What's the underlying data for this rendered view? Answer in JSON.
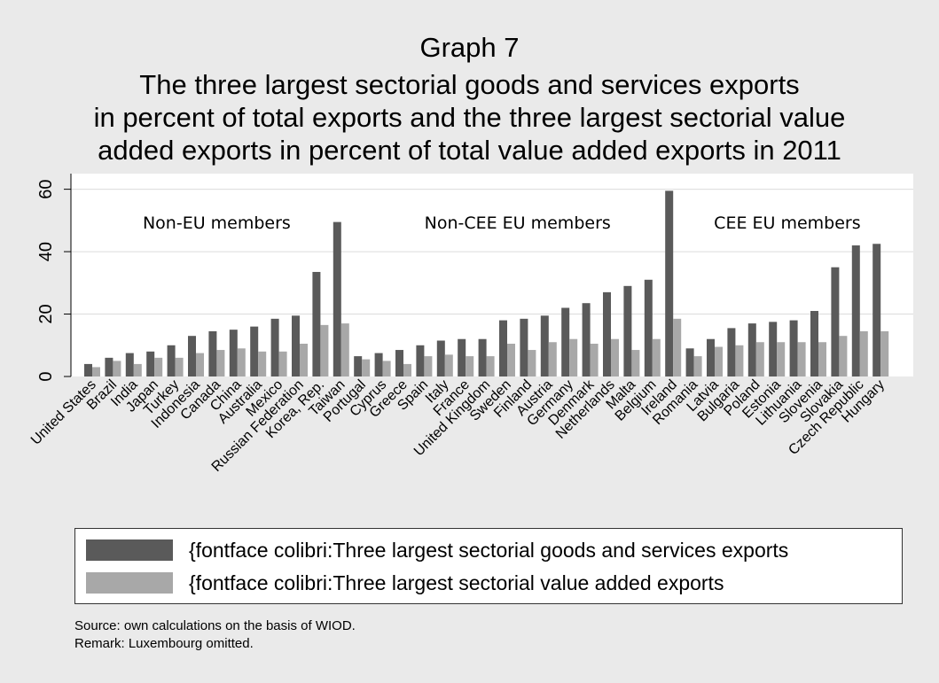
{
  "chart_data": {
    "type": "bar",
    "title_lines": [
      "Graph 7",
      "The three largest sectorial goods and services exports",
      "in percent of total exports and the three largest sectorial value",
      "added exports in percent of total value added exports in 2011"
    ],
    "ylim": [
      0,
      65
    ],
    "yticks": [
      0,
      20,
      40,
      60
    ],
    "grid": true,
    "legend_position": "bottom",
    "group_labels": [
      {
        "text": "Non-EU members",
        "first": 0,
        "last": 12
      },
      {
        "text": "Non-CEE EU members",
        "first": 13,
        "last": 28
      },
      {
        "text": "CEE EU members",
        "first": 29,
        "last": 38
      }
    ],
    "categories": [
      "United States",
      "Brazil",
      "India",
      "Japan",
      "Turkey",
      "Indonesia",
      "Canada",
      "China",
      "Australia",
      "Mexico",
      "Russian Federation",
      "Korea, Rep.",
      "Taiwan",
      "Portugal",
      "Cyprus",
      "Greece",
      "Spain",
      "Italy",
      "France",
      "United Kingdom",
      "Sweden",
      "Finland",
      "Austria",
      "Germany",
      "Denmark",
      "Netherlands",
      "Malta",
      "Belgium",
      "Ireland",
      "Romania",
      "Latvia",
      "Bulgaria",
      "Poland",
      "Estonia",
      "Lithuania",
      "Slovenia",
      "Slovakia",
      "Czech Republic",
      "Hungary"
    ],
    "series": [
      {
        "name": "{fontface colibri:Three largest sectorial goods and services exports",
        "color": "#5a5a5a",
        "values": [
          4,
          6,
          7.5,
          8,
          10,
          13,
          14.5,
          15,
          16,
          18.5,
          19.5,
          33.5,
          49.5,
          6.5,
          7.5,
          8.5,
          10,
          11.5,
          12,
          12,
          18,
          18.5,
          19.5,
          22,
          23.5,
          27,
          29,
          31,
          59.5,
          9,
          12,
          15.5,
          17,
          17.5,
          18,
          21,
          35,
          42,
          42.5
        ]
      },
      {
        "name": "{fontface colibri:Three largest sectorial value added exports",
        "color": "#a8a8a8",
        "values": [
          3,
          5,
          4,
          6,
          6,
          7.5,
          8.5,
          9,
          8,
          8,
          10.5,
          16.5,
          17,
          5.5,
          5,
          4,
          6.5,
          7,
          6.5,
          6.5,
          10.5,
          8.5,
          11,
          12,
          10.5,
          12,
          8.5,
          12,
          18.5,
          6.5,
          9.5,
          10,
          11,
          11,
          11,
          11,
          13,
          14.5,
          14.5
        ]
      }
    ]
  },
  "notes": {
    "source": "Source: own calculations on the basis of WIOD.",
    "remark": "Remark: Luxembourg omitted."
  }
}
